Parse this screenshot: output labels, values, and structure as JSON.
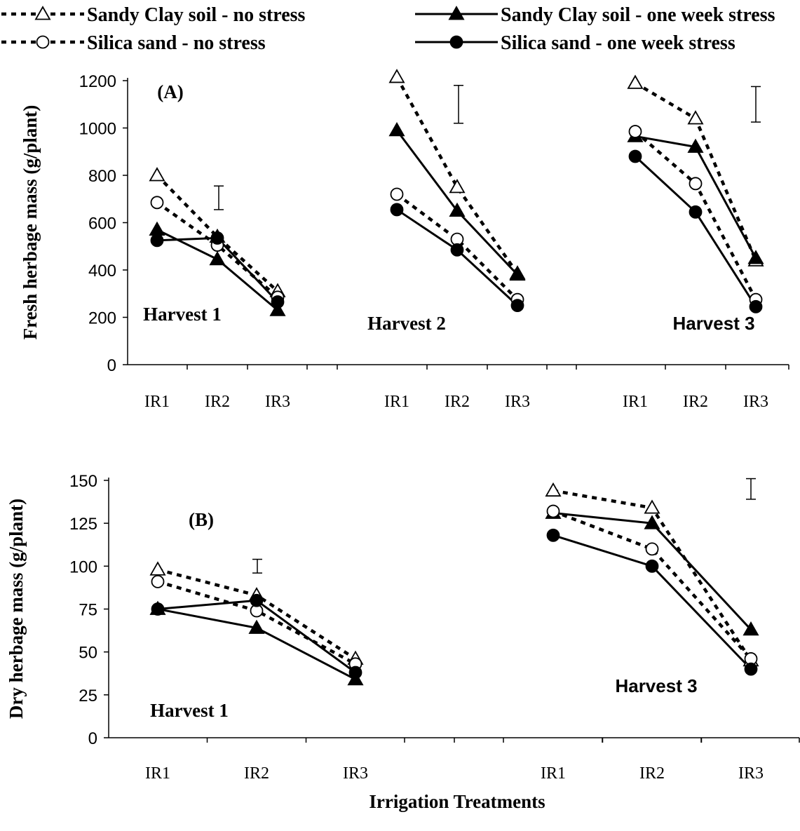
{
  "legend": [
    {
      "label": "Sandy Clay soil - no stress",
      "line": "dashed",
      "marker": "triangle-open"
    },
    {
      "label": "Sandy Clay soil - one week stress",
      "line": "solid",
      "marker": "triangle-filled"
    },
    {
      "label": "Silica sand - no stress",
      "line": "dashed",
      "marker": "circle-open"
    },
    {
      "label": "Silica sand - one week stress",
      "line": "solid",
      "marker": "circle-filled"
    }
  ],
  "xlabel": "Irrigation Treatments",
  "chart_data": [
    {
      "type": "line",
      "panel_label": "(A)",
      "ylabel": "Fresh herbage mass (g/plant)",
      "ylim": [
        0,
        1200
      ],
      "yticks": [
        "0",
        "200",
        "400",
        "600",
        "800",
        "1000",
        "1200"
      ],
      "categories": [
        "IR1",
        "IR2",
        "IR3",
        "IR1",
        "IR2",
        "IR3",
        "IR1",
        "IR2",
        "IR3"
      ],
      "group_labels": [
        "Harvest 1",
        "Harvest 2",
        "Harvest 3"
      ],
      "series": [
        {
          "name": "Sandy Clay soil - no stress",
          "groups": [
            [
              800,
              540,
              310
            ],
            [
              1215,
              750,
              385
            ],
            [
              1190,
              1040,
              440
            ]
          ]
        },
        {
          "name": "Sandy Clay soil - one week stress",
          "groups": [
            [
              570,
              445,
              230
            ],
            [
              990,
              650,
              380
            ],
            [
              965,
              920,
              450
            ]
          ]
        },
        {
          "name": "Silica sand - no stress",
          "groups": [
            [
              685,
              505,
              285
            ],
            [
              720,
              530,
              275
            ],
            [
              985,
              765,
              275
            ]
          ]
        },
        {
          "name": "Silica sand - one week stress",
          "groups": [
            [
              525,
              535,
              265
            ],
            [
              655,
              485,
              250
            ],
            [
              880,
              645,
              245
            ]
          ]
        }
      ],
      "error_bars": [
        [
          655,
          755
        ],
        [
          1020,
          1180
        ],
        [
          1025,
          1175
        ]
      ]
    },
    {
      "type": "line",
      "panel_label": "(B)",
      "ylabel": "Dry herbage mass (g/plant)",
      "ylim": [
        0,
        150
      ],
      "yticks": [
        "0",
        "25",
        "50",
        "75",
        "100",
        "125",
        "150"
      ],
      "categories": [
        "IR1",
        "IR2",
        "IR3",
        "IR1",
        "IR2",
        "IR3"
      ],
      "group_labels": [
        "Harvest 1",
        "Harvest 3"
      ],
      "series": [
        {
          "name": "Sandy Clay soil - no stress",
          "groups": [
            [
              98,
              83,
              46
            ],
            [
              144,
              134,
              45
            ]
          ]
        },
        {
          "name": "Sandy Clay soil - one week stress",
          "groups": [
            [
              75,
              64,
              34
            ],
            [
              131,
              125,
              63
            ]
          ]
        },
        {
          "name": "Silica sand - no stress",
          "groups": [
            [
              91,
              74,
              43
            ],
            [
              132,
              110,
              46
            ]
          ]
        },
        {
          "name": "Silica sand - one week stress",
          "groups": [
            [
              75,
              80,
              38
            ],
            [
              118,
              100,
              40
            ]
          ]
        }
      ],
      "error_bars": [
        [
          96,
          104
        ],
        [
          139,
          151
        ]
      ]
    }
  ]
}
